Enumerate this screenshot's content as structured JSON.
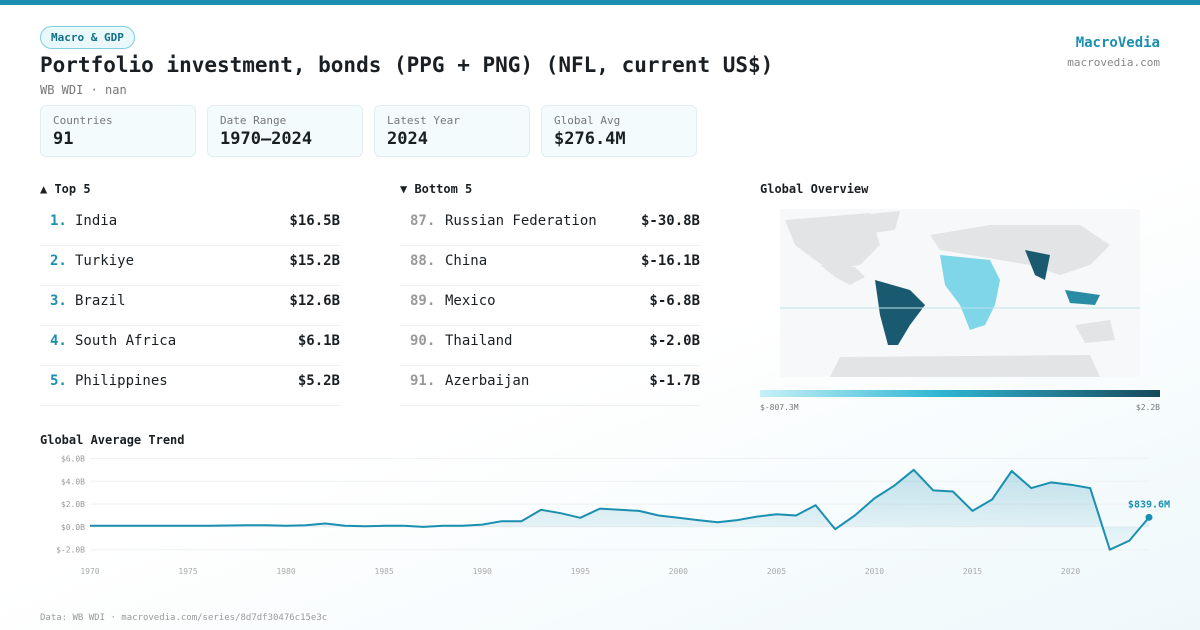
{
  "header": {
    "badge": "Macro & GDP",
    "title": "Portfolio investment, bonds (PPG + PNG) (NFL, current US$)",
    "subtitle": "WB WDI · nan",
    "brand": "MacroVedia",
    "site": "macrovedia.com"
  },
  "stats": [
    {
      "label": "Countries",
      "value": "91"
    },
    {
      "label": "Date Range",
      "value": "1970–2024"
    },
    {
      "label": "Latest Year",
      "value": "2024"
    },
    {
      "label": "Global Avg",
      "value": "$276.4M"
    }
  ],
  "top": {
    "title": "▲ Top 5",
    "rows": [
      {
        "rank": "1.",
        "name": "India",
        "value": "$16.5B"
      },
      {
        "rank": "2.",
        "name": "Turkiye",
        "value": "$15.2B"
      },
      {
        "rank": "3.",
        "name": "Brazil",
        "value": "$12.6B"
      },
      {
        "rank": "4.",
        "name": "South Africa",
        "value": "$6.1B"
      },
      {
        "rank": "5.",
        "name": "Philippines",
        "value": "$5.2B"
      }
    ]
  },
  "bottom": {
    "title": "▼ Bottom 5",
    "rows": [
      {
        "rank": "87.",
        "name": "Russian Federation",
        "value": "$-30.8B"
      },
      {
        "rank": "88.",
        "name": "China",
        "value": "$-16.1B"
      },
      {
        "rank": "89.",
        "name": "Mexico",
        "value": "$-6.8B"
      },
      {
        "rank": "90.",
        "name": "Thailand",
        "value": "$-2.0B"
      },
      {
        "rank": "91.",
        "name": "Azerbaijan",
        "value": "$-1.7B"
      }
    ]
  },
  "map": {
    "title": "Global Overview",
    "min_label": "$-807.3M",
    "max_label": "$2.2B"
  },
  "chart_data": {
    "type": "line",
    "title": "Global Average Trend",
    "x": [
      1970,
      1971,
      1972,
      1973,
      1974,
      1975,
      1976,
      1977,
      1978,
      1979,
      1980,
      1981,
      1982,
      1983,
      1984,
      1985,
      1986,
      1987,
      1988,
      1989,
      1990,
      1991,
      1992,
      1993,
      1994,
      1995,
      1996,
      1997,
      1998,
      1999,
      2000,
      2001,
      2002,
      2003,
      2004,
      2005,
      2006,
      2007,
      2008,
      2009,
      2010,
      2011,
      2012,
      2013,
      2014,
      2015,
      2016,
      2017,
      2018,
      2019,
      2020,
      2021,
      2022,
      2023,
      2024
    ],
    "series": [
      {
        "color": "#1a8fb0",
        "values": [
          0.1,
          0.1,
          0.1,
          0.1,
          0.1,
          0.1,
          0.1,
          0.12,
          0.15,
          0.15,
          0.1,
          0.15,
          0.3,
          0.1,
          0.05,
          0.1,
          0.1,
          0.0,
          0.1,
          0.1,
          0.2,
          0.5,
          0.5,
          1.5,
          1.2,
          0.8,
          1.6,
          1.5,
          1.4,
          1.0,
          0.8,
          0.6,
          0.4,
          0.6,
          0.9,
          1.1,
          1.0,
          1.9,
          -0.2,
          1.0,
          2.5,
          3.6,
          5.0,
          3.2,
          3.1,
          1.4,
          2.4,
          4.9,
          3.4,
          3.9,
          3.7,
          3.4,
          -2.0,
          -1.2,
          0.8396
        ],
        "value_labels": [
          null,
          null,
          null,
          null,
          null,
          null,
          null,
          null,
          null,
          null,
          null,
          null,
          null,
          null,
          null,
          null,
          null,
          null,
          null,
          null,
          null,
          null,
          null,
          null,
          null,
          null,
          null,
          null,
          null,
          null,
          null,
          null,
          null,
          null,
          null,
          null,
          null,
          null,
          null,
          null,
          null,
          null,
          null,
          null,
          null,
          null,
          null,
          null,
          null,
          null,
          null,
          null,
          null,
          null,
          "$839.6M"
        ]
      }
    ],
    "xlim": [
      1970,
      2024
    ],
    "xticks": [
      1970,
      1975,
      1980,
      1985,
      1990,
      1995,
      2000,
      2005,
      2010,
      2015,
      2020
    ],
    "ylim": [
      -2.9,
      6.3
    ],
    "yticks": [
      {
        "value": 6,
        "label": "$6.0B"
      },
      {
        "value": 4,
        "label": "$4.0B"
      },
      {
        "value": 2,
        "label": "$2.0B"
      },
      {
        "value": 0,
        "label": "$0.0B"
      },
      {
        "value": -2,
        "label": "$-2.0B"
      }
    ],
    "grid": true
  },
  "footer": "Data: WB WDI · macrovedia.com/series/8d7df30476c15e3c"
}
